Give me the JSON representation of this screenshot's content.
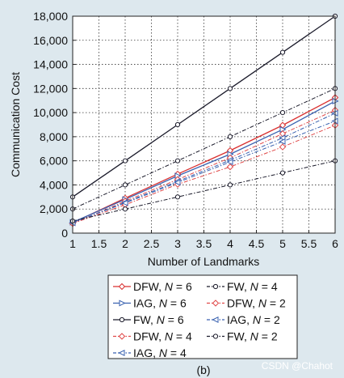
{
  "chart_data": {
    "type": "line",
    "xlabel": "Number of Landmarks",
    "ylabel": "Communication Cost",
    "xlim": [
      1,
      6
    ],
    "ylim": [
      0,
      18000
    ],
    "x_ticks": [
      "1",
      "1.5",
      "2",
      "2.5",
      "3",
      "3.5",
      "4",
      "4.5",
      "5",
      "5.5",
      "6"
    ],
    "y_ticks": [
      "0",
      "2,000",
      "4,000",
      "6,000",
      "8,000",
      "10,000",
      "12,000",
      "14,000",
      "16,000",
      "18,000"
    ],
    "grid": true,
    "legend_position": "bottom",
    "x": [
      1,
      2,
      3,
      4,
      5,
      6
    ],
    "series": [
      {
        "name": "DFW, N = 6",
        "legend_prefix": "DFW, ",
        "legend_n": "6",
        "color": "#d93030",
        "dash": "solid",
        "marker": "diamond",
        "values": [
          850,
          2900,
          4900,
          6850,
          8950,
          11250
        ]
      },
      {
        "name": "IAG, N = 6",
        "legend_prefix": "IAG, ",
        "legend_n": "6",
        "color": "#3a62b0",
        "dash": "solid",
        "marker": "triangle-right",
        "values": [
          900,
          2800,
          4750,
          6550,
          8600,
          10950
        ]
      },
      {
        "name": "FW, N = 6",
        "legend_prefix": "FW, ",
        "legend_n": "6",
        "color": "#1a1a2a",
        "dash": "solid",
        "marker": "circle",
        "values": [
          3000,
          6000,
          9000,
          12000,
          15000,
          18000
        ]
      },
      {
        "name": "DFW, N = 4",
        "legend_prefix": "DFW, ",
        "legend_n": "4",
        "color": "#e04848",
        "dash": "dashdot",
        "marker": "diamond",
        "values": [
          800,
          2650,
          4450,
          6250,
          8250,
          10200
        ]
      },
      {
        "name": "IAG, N = 4",
        "legend_prefix": "IAG, ",
        "legend_n": "4",
        "color": "#3a62b0",
        "dash": "dashdot",
        "marker": "triangle-left",
        "values": [
          850,
          2550,
          4300,
          6050,
          7900,
          9950
        ]
      },
      {
        "name": "FW, N = 4",
        "legend_prefix": "FW, ",
        "legend_n": "4",
        "color": "#1a1a2a",
        "dash": "dashdot",
        "marker": "circle",
        "values": [
          2000,
          4000,
          6000,
          8000,
          10000,
          12000
        ]
      },
      {
        "name": "DFW, N = 2",
        "legend_prefix": "DFW, ",
        "legend_n": "2",
        "color": "#e04848",
        "dash": "dashdot",
        "marker": "diamond",
        "values": [
          800,
          2350,
          4050,
          5500,
          7150,
          8950
        ]
      },
      {
        "name": "IAG, N = 2",
        "legend_prefix": "IAG, ",
        "legend_n": "2",
        "color": "#3a62b0",
        "dash": "dashdot",
        "marker": "triangle-left",
        "values": [
          850,
          2500,
          4200,
          5900,
          7600,
          9300
        ]
      },
      {
        "name": "FW, N = 2",
        "legend_prefix": "FW, ",
        "legend_n": "2",
        "color": "#1a1a2a",
        "dash": "dashdot",
        "marker": "circle",
        "values": [
          1000,
          2000,
          3000,
          4000,
          5000,
          6000
        ]
      }
    ],
    "legend_order": [
      [
        0,
        5
      ],
      [
        1,
        6
      ],
      [
        2,
        7
      ],
      [
        3,
        8
      ],
      [
        4,
        null
      ]
    ]
  },
  "caption": "(b)",
  "watermark": "CSDN @Chahot"
}
